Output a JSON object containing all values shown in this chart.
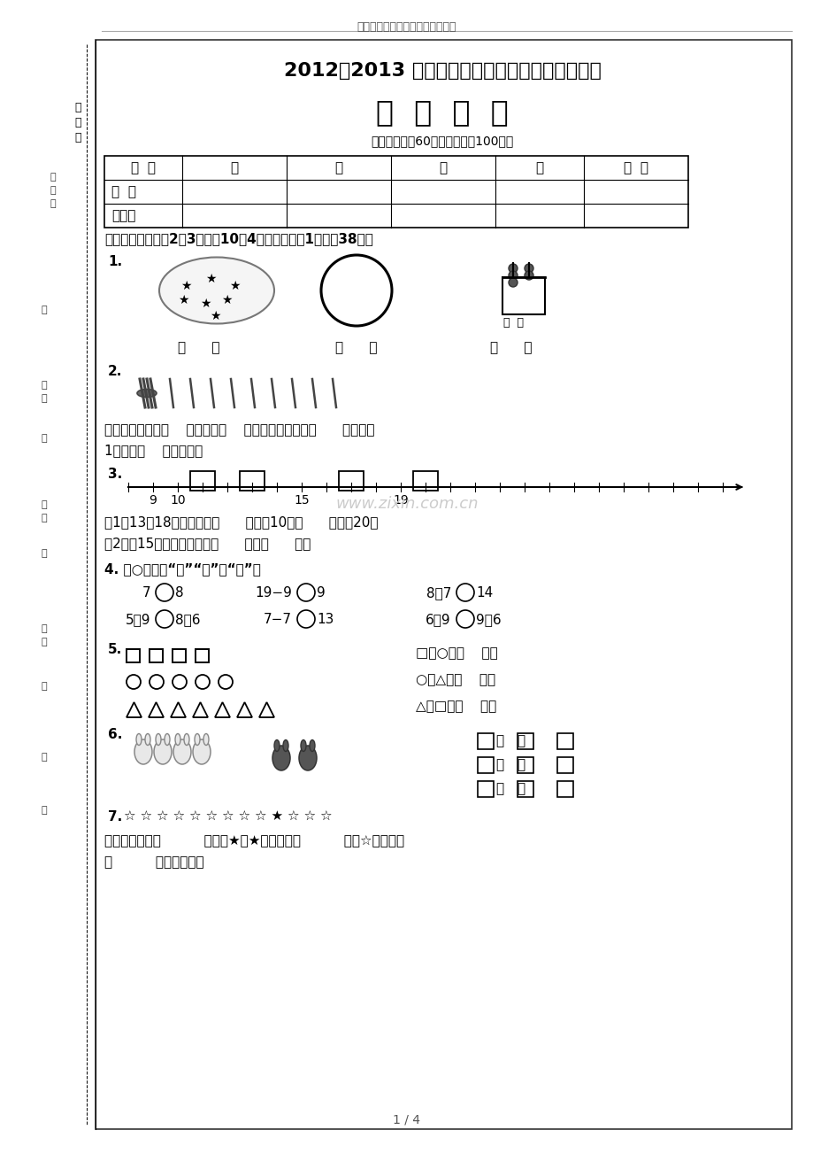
{
  "page_bg": "#ffffff",
  "top_header": "苏教版一年级数学上册期末测试卷",
  "title1": "2012～2013 学年度第一学期一年级期末调研测试",
  "title2": "数  学  试  题",
  "subtitle": "（考试时间：60分钟，总分：100分）",
  "table_headers": [
    "题  号",
    "一",
    "二",
    "三",
    "四",
    "总  分"
  ],
  "table_row1": "得  分",
  "table_row2": "核分人",
  "section1_title": "一、填一填。（第2题3分，第10题4分，其余每空1分。全38分）",
  "q1_label": "1.",
  "q2_label": "2.",
  "q2_text1": "上面的小棒表示（    ）个十和（    ）个一，这个数是（      ）。再添",
  "q2_text2": "1根就是（    ）根小棒。",
  "q3_label": "3.",
  "q3_sub1": "（1）13和18这两个数，（      ）接近10，（      ）接近20。",
  "q3_sub2": "（2）和15相邻的两个数是（      ）和（      ）。",
  "q4_header": "4. 在○里填上“＞”“＜”或“＝”。",
  "q4_r1": [
    [
      "7",
      "8"
    ],
    [
      "19）9",
      "9"
    ],
    [
      "8）7",
      "14"
    ]
  ],
  "q4_r2": [
    [
      "5）9",
      "8）6"
    ],
    [
      "7）7",
      "13"
    ],
    [
      "6）9",
      "9）6"
    ]
  ],
  "q5_label": "5.",
  "q5_right1": "□比○少（    ）个",
  "q5_right2": "○比△少（    ）个",
  "q5_right3": "△比□多（    ）个",
  "q6_label": "6.",
  "q7_label": "7.",
  "q7_stars": "☆ ☆ ☆ ☆ ☆ ☆ ☆ ☆ ☆ ★ ☆ ☆ ☆",
  "q7_text1": "从右边起，第（          ）个是★，★的左边有（          ）个☆，一共有",
  "q7_text2": "（          ）个五角星。",
  "page_num": "1 / 4",
  "watermark": "www.zixin.com.cn",
  "seal_chars": [
    "密",
    "封",
    "线"
  ],
  "left_col1": [
    "考",
    "试",
    "号"
  ],
  "left_col2": [
    "不"
  ],
  "left_col3": [
    "姓",
    "名"
  ],
  "left_col4": [
    "准"
  ],
  "left_col5": [
    "班",
    "级"
  ],
  "left_col6": [
    "内"
  ],
  "left_col7": [
    "学",
    "校"
  ],
  "left_col8": [
    "答"
  ],
  "left_col9": [
    "题"
  ],
  "left_col10": [
    "级"
  ]
}
